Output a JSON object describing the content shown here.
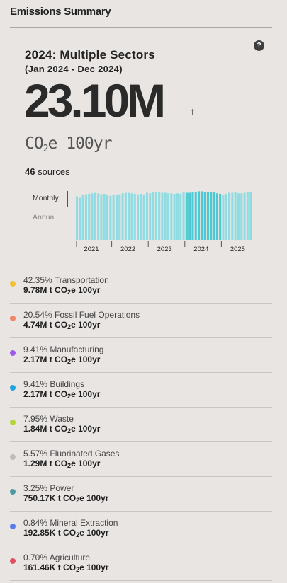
{
  "panel": {
    "title": "Emissions Summary",
    "help_icon": "question-mark-icon"
  },
  "summary": {
    "year_title": "2024: Multiple Sectors",
    "date_range": "(Jan 2024 - Dec 2024)",
    "total": "23.10M",
    "total_unit": "t",
    "unit_prefix": "CO",
    "unit_sub": "2",
    "unit_suffix": "e 100yr",
    "sources_count": "46",
    "sources_label": "sources"
  },
  "toggle": {
    "monthly": "Monthly",
    "annual": "Annual",
    "active": "Monthly"
  },
  "chart_data": {
    "type": "bar",
    "highlight_start": 36,
    "highlight_end": 47,
    "x_ticks": [
      "2021",
      "2022",
      "2023",
      "2024",
      "2025"
    ],
    "values": [
      0.88,
      0.85,
      0.9,
      0.92,
      0.93,
      0.94,
      0.95,
      0.94,
      0.92,
      0.93,
      0.9,
      0.89,
      0.9,
      0.91,
      0.92,
      0.94,
      0.95,
      0.95,
      0.94,
      0.93,
      0.92,
      0.93,
      0.91,
      0.95,
      0.94,
      0.96,
      0.97,
      0.96,
      0.95,
      0.95,
      0.94,
      0.94,
      0.93,
      0.94,
      0.93,
      0.96,
      0.95,
      0.95,
      0.96,
      0.97,
      0.98,
      0.98,
      0.97,
      0.97,
      0.96,
      0.97,
      0.94,
      0.93,
      0.91,
      0.93,
      0.95,
      0.95,
      0.96,
      0.94,
      0.94,
      0.95,
      0.96,
      0.96
    ],
    "colors": {
      "base": "#8fdde3",
      "highlight": "#4dc9d3"
    }
  },
  "sectors": [
    {
      "pct": "42.35%",
      "name": "Transportation",
      "value": "9.78M",
      "color": "#f2c12e"
    },
    {
      "pct": "20.54%",
      "name": "Fossil Fuel Operations",
      "value": "4.74M",
      "color": "#f08665"
    },
    {
      "pct": "9.41%",
      "name": "Manufacturing",
      "value": "2.17M",
      "color": "#9b59f0"
    },
    {
      "pct": "9.41%",
      "name": "Buildings",
      "value": "2.17M",
      "color": "#1fa3de"
    },
    {
      "pct": "7.95%",
      "name": "Waste",
      "value": "1.84M",
      "color": "#b6d433"
    },
    {
      "pct": "5.57%",
      "name": "Fluorinated Gases",
      "value": "1.29M",
      "color": "#bdbdbd"
    },
    {
      "pct": "3.25%",
      "name": "Power",
      "value": "750.17K",
      "color": "#4a9aa3"
    },
    {
      "pct": "0.84%",
      "name": "Mineral Extraction",
      "value": "192.85K",
      "color": "#5a7af0"
    },
    {
      "pct": "0.70%",
      "name": "Agriculture",
      "value": "161.46K",
      "color": "#e34d64"
    }
  ],
  "unit_text": {
    "pre": "t CO",
    "sub": "2",
    "post": "e 100yr"
  }
}
